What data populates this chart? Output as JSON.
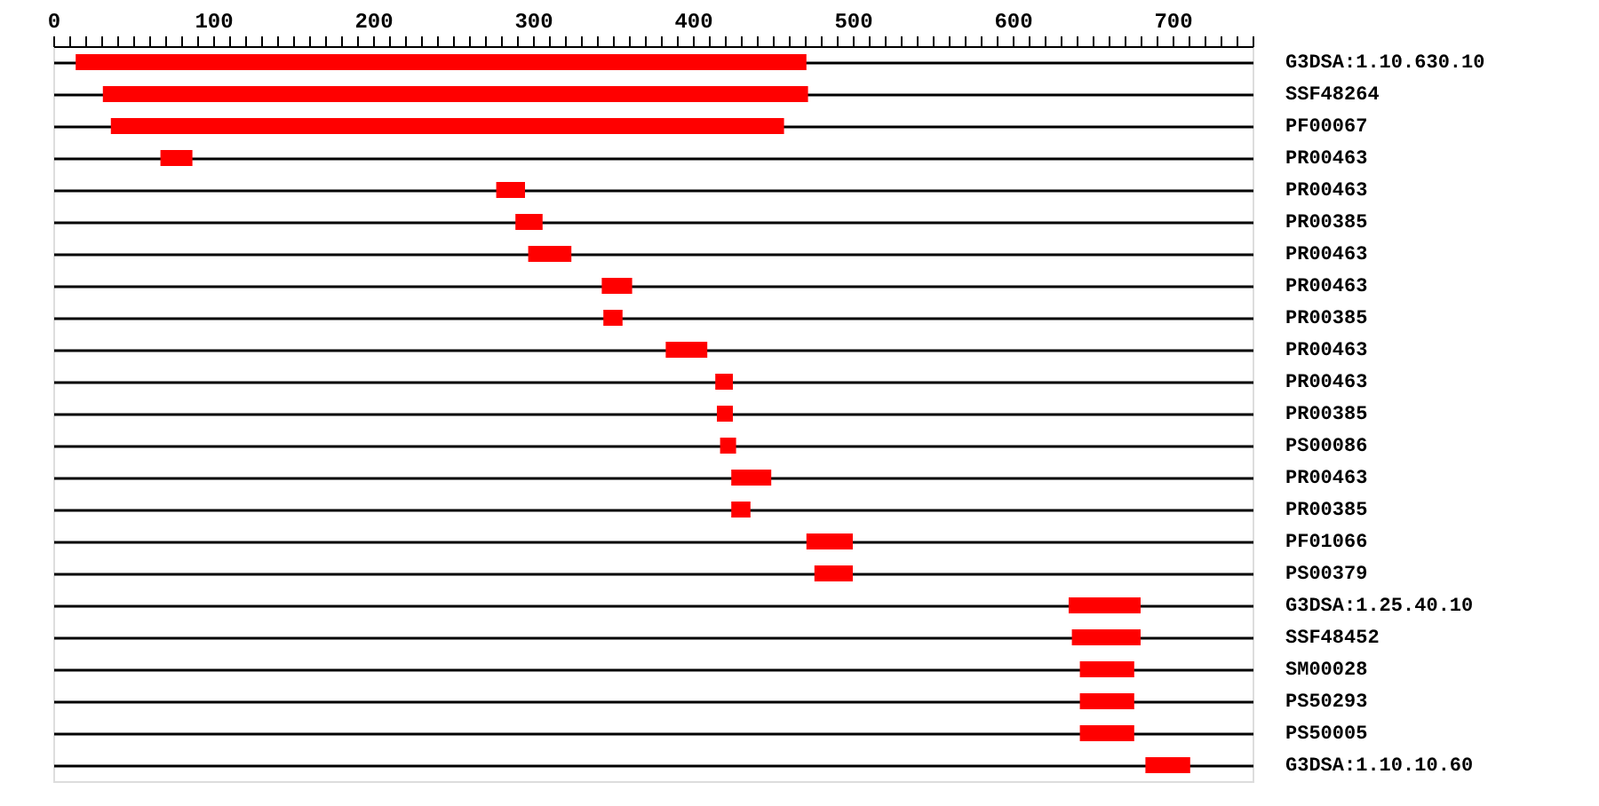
{
  "chart_data": {
    "type": "bar",
    "orientation": "horizontal",
    "color": "#ff0000",
    "grid": "y",
    "categories": [
      "G3DSA:1.10.630.10",
      "SSF48264",
      "PF00067",
      "PR00463",
      "PR00463",
      "PR00385",
      "PR00463",
      "PR00463",
      "PR00385",
      "PR00463",
      "PR00463",
      "PR00385",
      "PS00086",
      "PR00463",
      "PR00385",
      "PF01066",
      "PS00379",
      "G3DSA:1.25.40.10",
      "SSF48452",
      "SM00028",
      "PS50293",
      "PS50005",
      "G3DSA:1.10.10.60"
    ],
    "base": [
      14,
      31,
      36,
      67,
      277,
      289,
      297,
      343,
      344,
      383,
      414,
      415,
      417,
      424,
      424,
      471,
      476,
      635,
      637,
      642,
      642,
      642,
      683
    ],
    "values": [
      457,
      441,
      421,
      20,
      18,
      17,
      27,
      19,
      12,
      26,
      11,
      10,
      10,
      25,
      12,
      29,
      24,
      45,
      43,
      34,
      34,
      34,
      28
    ],
    "xlim": [
      0,
      750
    ],
    "xticks": [
      0,
      {
        "value": 10,
        "label": null
      },
      {
        "value": 20,
        "label": null
      },
      {
        "value": 30,
        "label": null
      },
      {
        "value": 40,
        "label": null
      },
      {
        "value": 50,
        "label": null
      },
      {
        "value": 60,
        "label": null
      },
      {
        "value": 70,
        "label": null
      },
      {
        "value": 80,
        "label": null
      },
      {
        "value": 90,
        "label": null
      },
      100,
      {
        "value": 110,
        "label": null
      },
      {
        "value": 120,
        "label": null
      },
      {
        "value": 130,
        "label": null
      },
      {
        "value": 140,
        "label": null
      },
      {
        "value": 150,
        "label": null
      },
      {
        "value": 160,
        "label": null
      },
      {
        "value": 170,
        "label": null
      },
      {
        "value": 180,
        "label": null
      },
      {
        "value": 190,
        "label": null
      },
      200,
      {
        "value": 210,
        "label": null
      },
      {
        "value": 220,
        "label": null
      },
      {
        "value": 230,
        "label": null
      },
      {
        "value": 240,
        "label": null
      },
      {
        "value": 250,
        "label": null
      },
      {
        "value": 260,
        "label": null
      },
      {
        "value": 270,
        "label": null
      },
      {
        "value": 280,
        "label": null
      },
      {
        "value": 290,
        "label": null
      },
      300,
      {
        "value": 310,
        "label": null
      },
      {
        "value": 320,
        "label": null
      },
      {
        "value": 330,
        "label": null
      },
      {
        "value": 340,
        "label": null
      },
      {
        "value": 350,
        "label": null
      },
      {
        "value": 360,
        "label": null
      },
      {
        "value": 370,
        "label": null
      },
      {
        "value": 380,
        "label": null
      },
      {
        "value": 390,
        "label": null
      },
      400,
      {
        "value": 410,
        "label": null
      },
      {
        "value": 420,
        "label": null
      },
      {
        "value": 430,
        "label": null
      },
      {
        "value": 440,
        "label": null
      },
      {
        "value": 450,
        "label": null
      },
      {
        "value": 460,
        "label": null
      },
      {
        "value": 470,
        "label": null
      },
      {
        "value": 480,
        "label": null
      },
      {
        "value": 490,
        "label": null
      },
      500,
      {
        "value": 510,
        "label": null
      },
      {
        "value": 520,
        "label": null
      },
      {
        "value": 530,
        "label": null
      },
      {
        "value": 540,
        "label": null
      },
      {
        "value": 550,
        "label": null
      },
      {
        "value": 560,
        "label": null
      },
      {
        "value": 570,
        "label": null
      },
      {
        "value": 580,
        "label": null
      },
      {
        "value": 590,
        "label": null
      },
      600,
      {
        "value": 610,
        "label": null
      },
      {
        "value": 620,
        "label": null
      },
      {
        "value": 630,
        "label": null
      },
      {
        "value": 640,
        "label": null
      },
      {
        "value": 650,
        "label": null
      },
      {
        "value": 660,
        "label": null
      },
      {
        "value": 670,
        "label": null
      },
      {
        "value": 680,
        "label": null
      },
      {
        "value": 690,
        "label": null
      },
      700,
      {
        "value": 710,
        "label": null
      },
      {
        "value": 720,
        "label": null
      },
      {
        "value": 730,
        "label": null
      },
      {
        "value": 740,
        "label": null
      },
      {
        "value": 750,
        "label": null
      }
    ]
  }
}
